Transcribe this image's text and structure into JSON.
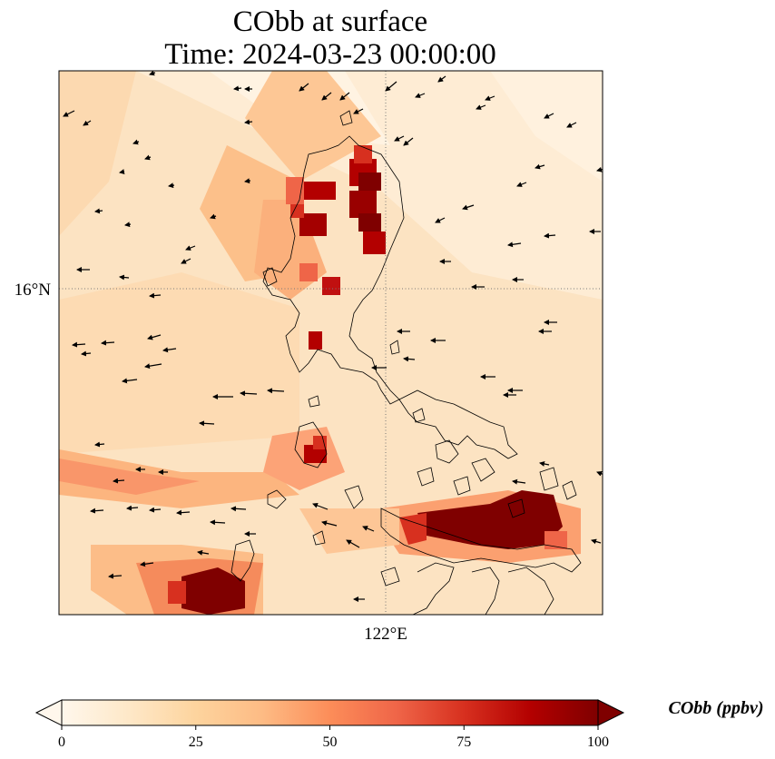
{
  "title": {
    "line1": "CObb at surface",
    "line2": "Time: 2024-03-23 00:00:00"
  },
  "map": {
    "grid": "dotted",
    "lat_label": "16°N",
    "lon_label": "122°E",
    "coastline_color": "#000000",
    "wind_vector_color": "#000000"
  },
  "colorbar": {
    "label": "CObb (ppbv)",
    "ticks": [
      "0",
      "25",
      "50",
      "75",
      "100"
    ],
    "range": [
      0,
      100
    ],
    "extend": "both",
    "colormap": "OrRd",
    "colors": [
      "#fff7ec",
      "#fee8c8",
      "#fdd49e",
      "#fdbb84",
      "#fc8d59",
      "#ef6548",
      "#d7301f",
      "#b30000",
      "#7f0000"
    ]
  }
}
